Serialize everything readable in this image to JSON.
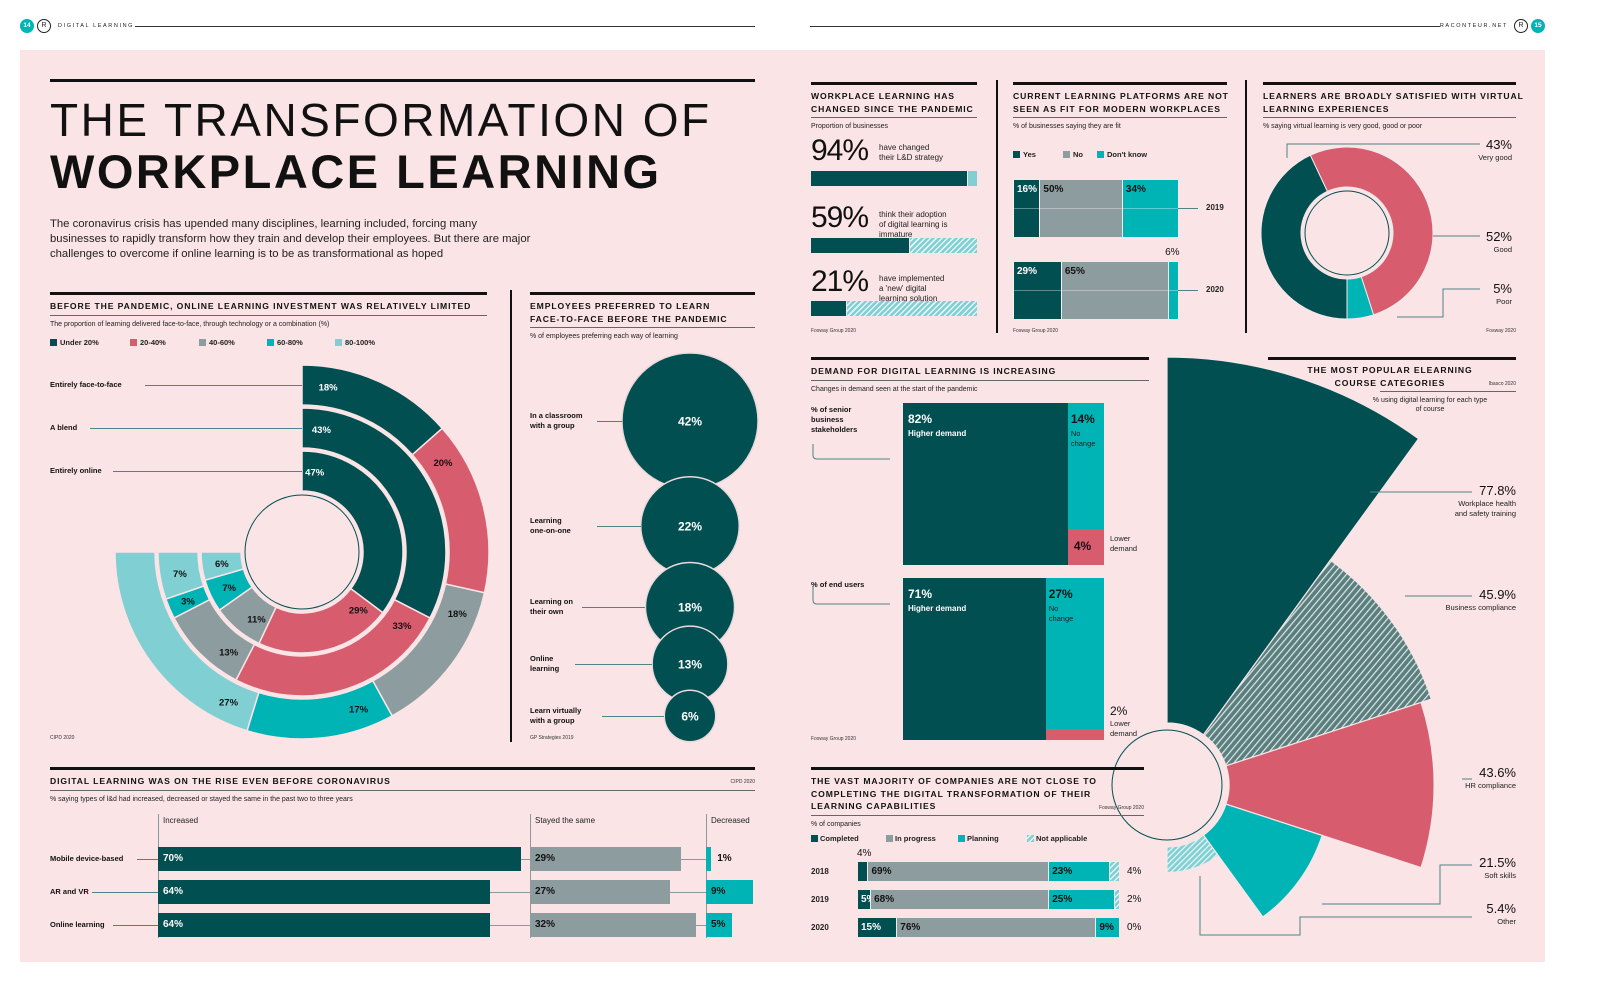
{
  "header": {
    "left_page": "14",
    "left_section": "DIGITAL LEARNING",
    "right_site": "RACONTEUR.NET",
    "right_page": "15",
    "logo_letter": "R"
  },
  "title": {
    "line1": "THE TRANSFORMATION OF",
    "line2": "WORKPLACE LEARNING"
  },
  "intro": "The coronavirus crisis has upended many disciplines, learning included, forcing many businesses to rapidly transform how they train and develop their employees. But there are major challenges to overcome if online learning is to be as transformational as hoped",
  "colors": {
    "background": "#fae4e6",
    "dark_teal": "#024f52",
    "pink": "#d75d6e",
    "grey": "#8d9c9e",
    "teal": "#00b4b6",
    "light_teal": "#80cfd3",
    "hatched_dark": "#5b7f7e",
    "ink": "#111111"
  },
  "chart_data": [
    {
      "type": "radial_bar",
      "title": "BEFORE THE PANDEMIC, ONLINE LEARNING INVESTMENT WAS RELATIVELY LIMITED",
      "subtitle": "The proportion of learning delivered face-to-face, through technology or a combination (%)",
      "source": "CIPD 2020",
      "legend_position": "top-left",
      "categories": [
        "Entirely face-to-face",
        "A blend",
        "Entirely online"
      ],
      "series": [
        {
          "name": "Under 20%",
          "color": "#024f52",
          "values": [
            18,
            43,
            47
          ]
        },
        {
          "name": "20-40%",
          "color": "#d75d6e",
          "values": [
            20,
            33,
            29
          ]
        },
        {
          "name": "40-60%",
          "color": "#8d9c9e",
          "values": [
            18,
            13,
            11
          ]
        },
        {
          "name": "60-80%",
          "color": "#00b4b6",
          "values": [
            17,
            3,
            7
          ]
        },
        {
          "name": "80-100%",
          "color": "#80cfd3",
          "values": [
            27,
            7,
            6
          ]
        }
      ]
    },
    {
      "type": "bubble",
      "title": "EMPLOYEES PREFERRED TO LEARN\nFACE-TO-FACE BEFORE THE PANDEMIC",
      "subtitle": "% of employees preferring each way of learning",
      "source": "GP Strategies 2019",
      "categories": [
        "In a classroom\nwith a group",
        "Learning\none-on-one",
        "Learning on\ntheir own",
        "Online\nlearning",
        "Learn virtually\nwith a group"
      ],
      "values": [
        42,
        22,
        18,
        13,
        6
      ]
    },
    {
      "type": "bar",
      "title": "DIGITAL LEARNING WAS ON THE RISE EVEN BEFORE CORONAVIRUS",
      "subtitle": "% saying types of l&d had increased, decreased or stayed the same in the past two to three years",
      "source": "CIPD 2020",
      "categories": [
        "Mobile device-based",
        "AR and VR",
        "Online learning"
      ],
      "series": [
        {
          "name": "Increased",
          "values": [
            70,
            64,
            64
          ]
        },
        {
          "name": "Stayed the same",
          "values": [
            29,
            27,
            32
          ]
        },
        {
          "name": "Decreased",
          "values": [
            1,
            9,
            5
          ]
        }
      ]
    },
    {
      "type": "bar",
      "title": "WORKPLACE LEARNING HAS\nCHANGED SINCE THE PANDEMIC",
      "subtitle": "Proportion of businesses",
      "source": "Fosway Group 2020",
      "items": [
        {
          "value": 94,
          "label": "have changed\ntheir L&D strategy"
        },
        {
          "value": 59,
          "label": "think their adoption\nof digital learning is\nimmature"
        },
        {
          "value": 21,
          "label": "have implemented\na 'new' digital\nlearning solution"
        }
      ]
    },
    {
      "type": "bar",
      "stacked": true,
      "title": "CURRENT LEARNING PLATFORMS ARE NOT\nSEEN AS FIT FOR MODERN WORKPLACES",
      "subtitle": "% of businesses saying they are fit",
      "source": "Fosway Group 2020",
      "categories": [
        "2019",
        "2020"
      ],
      "series": [
        {
          "name": "Yes",
          "values": [
            16,
            29
          ]
        },
        {
          "name": "No",
          "values": [
            50,
            65
          ]
        },
        {
          "name": "Don't know",
          "values": [
            34,
            6
          ]
        }
      ]
    },
    {
      "type": "pie",
      "donut": true,
      "title": "LEARNERS ARE BROADLY SATISFIED WITH VIRTUAL\nLEARNING EXPERIENCES",
      "subtitle": "% saying virtual learning is very good, good or poor",
      "source": "Fosway 2020",
      "categories": [
        "Very good",
        "Good",
        "Poor"
      ],
      "values": [
        43,
        52,
        5
      ]
    },
    {
      "type": "bar",
      "stacked": true,
      "title": "DEMAND FOR DIGITAL LEARNING IS INCREASING",
      "subtitle": "Changes in demand seen at the start of the pandemic",
      "source": "Fosway Group 2020",
      "categories": [
        "% of senior\nbusiness\nstakeholders",
        "% of end users"
      ],
      "series": [
        {
          "name": "Higher demand",
          "values": [
            82,
            71
          ]
        },
        {
          "name": "No\nchange",
          "values": [
            14,
            27
          ]
        },
        {
          "name": "Lower\ndemand",
          "values": [
            4,
            2
          ]
        }
      ]
    },
    {
      "type": "bar",
      "stacked": true,
      "title": "THE VAST MAJORITY OF COMPANIES ARE NOT CLOSE TO\nCOMPLETING THE DIGITAL TRANSFORMATION OF THEIR\nLEARNING CAPABILITIES",
      "subtitle": "% of companies",
      "source": "Fosway Group 2020",
      "categories": [
        "2018",
        "2019",
        "2020"
      ],
      "series": [
        {
          "name": "Completed",
          "values": [
            4,
            5,
            15
          ]
        },
        {
          "name": "In progress",
          "values": [
            69,
            68,
            76
          ]
        },
        {
          "name": "Planning",
          "values": [
            23,
            25,
            9
          ]
        },
        {
          "name": "Not applicable",
          "values": [
            4,
            2,
            0
          ]
        }
      ]
    },
    {
      "type": "polar_area",
      "title": "THE MOST POPULAR ELEARNING\nCOURSE CATEGORIES",
      "subtitle": "% using digital learning for each type\nof course",
      "source": "Ibasco 2020",
      "categories": [
        "Workplace health\nand safety training",
        "Business compliance",
        "HR compliance",
        "Soft skills",
        "Other"
      ],
      "values": [
        77.8,
        45.9,
        43.6,
        21.5,
        5.4
      ]
    }
  ]
}
